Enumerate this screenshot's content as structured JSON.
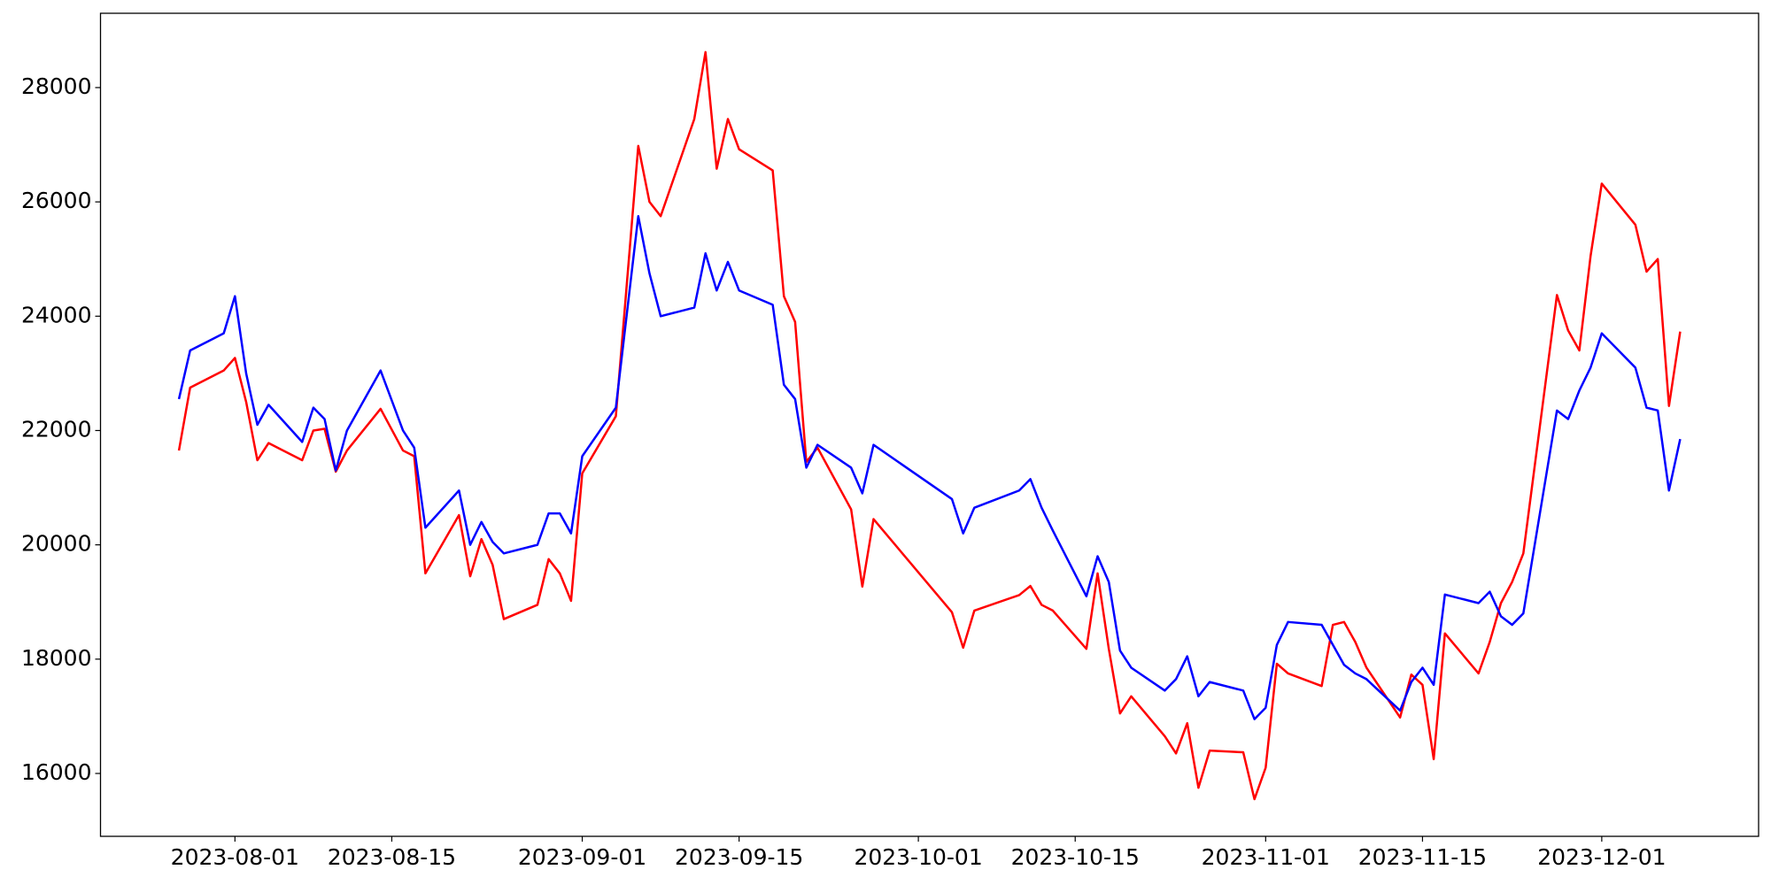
{
  "chart_data": {
    "type": "line",
    "x": [
      "2023-07-27",
      "2023-07-28",
      "2023-07-31",
      "2023-08-01",
      "2023-08-02",
      "2023-08-03",
      "2023-08-04",
      "2023-08-07",
      "2023-08-08",
      "2023-08-09",
      "2023-08-10",
      "2023-08-11",
      "2023-08-14",
      "2023-08-16",
      "2023-08-17",
      "2023-08-18",
      "2023-08-21",
      "2023-08-22",
      "2023-08-23",
      "2023-08-24",
      "2023-08-25",
      "2023-08-28",
      "2023-08-29",
      "2023-08-30",
      "2023-08-31",
      "2023-09-01",
      "2023-09-04",
      "2023-09-06",
      "2023-09-07",
      "2023-09-08",
      "2023-09-11",
      "2023-09-12",
      "2023-09-13",
      "2023-09-14",
      "2023-09-15",
      "2023-09-18",
      "2023-09-19",
      "2023-09-20",
      "2023-09-21",
      "2023-09-22",
      "2023-09-25",
      "2023-09-26",
      "2023-09-27",
      "2023-10-04",
      "2023-10-05",
      "2023-10-06",
      "2023-10-10",
      "2023-10-11",
      "2023-10-12",
      "2023-10-13",
      "2023-10-16",
      "2023-10-17",
      "2023-10-18",
      "2023-10-19",
      "2023-10-20",
      "2023-10-23",
      "2023-10-24",
      "2023-10-25",
      "2023-10-26",
      "2023-10-27",
      "2023-10-30",
      "2023-10-31",
      "2023-11-01",
      "2023-11-02",
      "2023-11-03",
      "2023-11-06",
      "2023-11-07",
      "2023-11-08",
      "2023-11-09",
      "2023-11-10",
      "2023-11-13",
      "2023-11-14",
      "2023-11-15",
      "2023-11-16",
      "2023-11-17",
      "2023-11-20",
      "2023-11-21",
      "2023-11-22",
      "2023-11-23",
      "2023-11-24",
      "2023-11-27",
      "2023-11-28",
      "2023-11-29",
      "2023-11-30",
      "2023-12-01",
      "2023-12-04",
      "2023-12-05",
      "2023-12-06",
      "2023-12-07",
      "2023-12-08"
    ],
    "series": [
      {
        "color": "#ff0000",
        "values": [
          21650,
          22750,
          23050,
          23270,
          22500,
          21480,
          21780,
          21480,
          22000,
          22030,
          21280,
          21650,
          22380,
          21650,
          21550,
          19500,
          20520,
          19450,
          20100,
          19650,
          18700,
          18950,
          19750,
          19500,
          19020,
          21250,
          22250,
          26980,
          26000,
          25750,
          27450,
          28620,
          26580,
          27450,
          26920,
          26550,
          24350,
          23900,
          21450,
          21700,
          20620,
          19270,
          20450,
          18820,
          18200,
          18850,
          19120,
          19280,
          18950,
          18850,
          18180,
          19500,
          18180,
          17050,
          17350,
          16650,
          16350,
          16880,
          15750,
          16400,
          16370,
          15550,
          16100,
          17920,
          17750,
          17530,
          18600,
          18650,
          18300,
          17850,
          16980,
          17730,
          17550,
          16250,
          18450,
          17750,
          18300,
          18980,
          19350,
          19850,
          24370,
          23750,
          23400,
          25050,
          26320,
          25600,
          24780,
          25000,
          22430,
          23730
        ]
      },
      {
        "color": "#0000ff",
        "values": [
          22550,
          23400,
          23700,
          24350,
          23000,
          22100,
          22450,
          21800,
          22400,
          22200,
          21300,
          22000,
          23050,
          22000,
          21700,
          20300,
          20950,
          20000,
          20400,
          20050,
          19850,
          20000,
          20550,
          20550,
          20200,
          21550,
          22400,
          25750,
          24750,
          24000,
          24150,
          25100,
          24450,
          24950,
          24450,
          24200,
          22800,
          22550,
          21350,
          21750,
          21350,
          20900,
          21750,
          20800,
          20200,
          20650,
          20950,
          21150,
          20650,
          20250,
          19100,
          19800,
          19350,
          18150,
          17850,
          17450,
          17650,
          18050,
          17350,
          17600,
          17450,
          16950,
          17150,
          18250,
          18650,
          18600,
          18250,
          17900,
          17750,
          17650,
          17100,
          17600,
          17850,
          17550,
          19130,
          18980,
          19180,
          18750,
          18600,
          18800,
          22350,
          22200,
          22700,
          23100,
          23700,
          23100,
          22400,
          22350,
          20950,
          21850
        ]
      }
    ],
    "xlim": [
      "2023-07-20",
      "2023-12-15"
    ],
    "xticks": [
      "2023-08-01",
      "2023-08-15",
      "2023-09-01",
      "2023-09-15",
      "2023-10-01",
      "2023-10-15",
      "2023-11-01",
      "2023-11-15",
      "2023-12-01"
    ],
    "ylim": [
      14900,
      29300
    ],
    "yticks": [
      16000,
      18000,
      20000,
      22000,
      24000,
      26000,
      28000
    ]
  }
}
